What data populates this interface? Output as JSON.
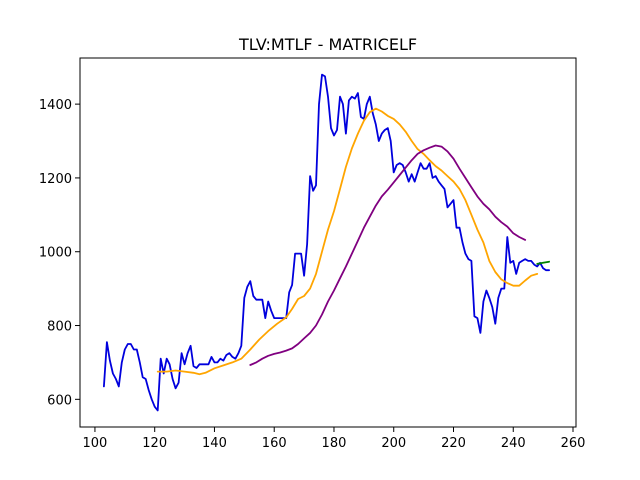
{
  "chart_data": {
    "type": "line",
    "title": "TLV:MTLF - MATRICELF",
    "xlabel": "",
    "ylabel": "",
    "xlim": [
      95,
      261
    ],
    "ylim": [
      525,
      1525
    ],
    "xticks": [
      100,
      120,
      140,
      160,
      180,
      200,
      220,
      240,
      260
    ],
    "yticks": [
      600,
      800,
      1000,
      1200,
      1400
    ],
    "grid": false,
    "legend": "none",
    "series": [
      {
        "color": "#0000dd",
        "points": [
          [
            103,
            635
          ],
          [
            104,
            755
          ],
          [
            105,
            705
          ],
          [
            106,
            670
          ],
          [
            107,
            655
          ],
          [
            108,
            635
          ],
          [
            109,
            700
          ],
          [
            110,
            735
          ],
          [
            111,
            750
          ],
          [
            112,
            750
          ],
          [
            113,
            735
          ],
          [
            114,
            735
          ],
          [
            115,
            700
          ],
          [
            116,
            660
          ],
          [
            117,
            655
          ],
          [
            118,
            625
          ],
          [
            119,
            600
          ],
          [
            120,
            580
          ],
          [
            121,
            570
          ],
          [
            122,
            710
          ],
          [
            123,
            670
          ],
          [
            124,
            710
          ],
          [
            125,
            695
          ],
          [
            126,
            655
          ],
          [
            127,
            630
          ],
          [
            128,
            645
          ],
          [
            129,
            725
          ],
          [
            130,
            695
          ],
          [
            131,
            725
          ],
          [
            132,
            745
          ],
          [
            133,
            690
          ],
          [
            134,
            685
          ],
          [
            135,
            695
          ],
          [
            136,
            695
          ],
          [
            137,
            695
          ],
          [
            138,
            695
          ],
          [
            139,
            715
          ],
          [
            140,
            700
          ],
          [
            141,
            700
          ],
          [
            142,
            710
          ],
          [
            143,
            705
          ],
          [
            144,
            720
          ],
          [
            145,
            725
          ],
          [
            146,
            715
          ],
          [
            147,
            710
          ],
          [
            148,
            725
          ],
          [
            149,
            745
          ],
          [
            150,
            875
          ],
          [
            151,
            905
          ],
          [
            152,
            920
          ],
          [
            153,
            880
          ],
          [
            154,
            870
          ],
          [
            155,
            870
          ],
          [
            156,
            870
          ],
          [
            157,
            820
          ],
          [
            158,
            865
          ],
          [
            159,
            840
          ],
          [
            160,
            820
          ],
          [
            161,
            820
          ],
          [
            162,
            820
          ],
          [
            163,
            820
          ],
          [
            164,
            820
          ],
          [
            165,
            890
          ],
          [
            166,
            910
          ],
          [
            167,
            995
          ],
          [
            168,
            995
          ],
          [
            169,
            995
          ],
          [
            170,
            935
          ],
          [
            171,
            1020
          ],
          [
            172,
            1205
          ],
          [
            173,
            1165
          ],
          [
            174,
            1180
          ],
          [
            175,
            1400
          ],
          [
            176,
            1480
          ],
          [
            177,
            1475
          ],
          [
            178,
            1420
          ],
          [
            179,
            1335
          ],
          [
            180,
            1315
          ],
          [
            181,
            1330
          ],
          [
            182,
            1420
          ],
          [
            183,
            1400
          ],
          [
            184,
            1320
          ],
          [
            185,
            1410
          ],
          [
            186,
            1420
          ],
          [
            187,
            1415
          ],
          [
            188,
            1430
          ],
          [
            189,
            1365
          ],
          [
            190,
            1360
          ],
          [
            191,
            1400
          ],
          [
            192,
            1420
          ],
          [
            193,
            1375
          ],
          [
            194,
            1345
          ],
          [
            195,
            1300
          ],
          [
            196,
            1320
          ],
          [
            197,
            1330
          ],
          [
            198,
            1335
          ],
          [
            199,
            1300
          ],
          [
            200,
            1215
          ],
          [
            201,
            1235
          ],
          [
            202,
            1240
          ],
          [
            203,
            1235
          ],
          [
            204,
            1215
          ],
          [
            205,
            1190
          ],
          [
            206,
            1210
          ],
          [
            207,
            1190
          ],
          [
            208,
            1215
          ],
          [
            209,
            1240
          ],
          [
            210,
            1225
          ],
          [
            211,
            1225
          ],
          [
            212,
            1240
          ],
          [
            213,
            1200
          ],
          [
            214,
            1205
          ],
          [
            215,
            1190
          ],
          [
            216,
            1180
          ],
          [
            217,
            1170
          ],
          [
            218,
            1120
          ],
          [
            219,
            1130
          ],
          [
            220,
            1140
          ],
          [
            221,
            1065
          ],
          [
            222,
            1065
          ],
          [
            223,
            1025
          ],
          [
            224,
            995
          ],
          [
            225,
            980
          ],
          [
            226,
            975
          ],
          [
            227,
            825
          ],
          [
            228,
            820
          ],
          [
            229,
            780
          ],
          [
            230,
            865
          ],
          [
            231,
            895
          ],
          [
            232,
            875
          ],
          [
            233,
            850
          ],
          [
            234,
            805
          ],
          [
            235,
            875
          ],
          [
            236,
            900
          ],
          [
            237,
            900
          ],
          [
            238,
            1040
          ],
          [
            239,
            970
          ],
          [
            240,
            975
          ],
          [
            241,
            940
          ],
          [
            242,
            970
          ],
          [
            243,
            975
          ],
          [
            244,
            980
          ],
          [
            245,
            975
          ],
          [
            246,
            975
          ],
          [
            247,
            965
          ],
          [
            248,
            960
          ],
          [
            249,
            970
          ],
          [
            250,
            955
          ],
          [
            251,
            950
          ],
          [
            252,
            950
          ]
        ]
      },
      {
        "color": "#ffa500",
        "points": [
          [
            121,
            675
          ],
          [
            124,
            675
          ],
          [
            127,
            678
          ],
          [
            130,
            675
          ],
          [
            133,
            672
          ],
          [
            135,
            668
          ],
          [
            137,
            672
          ],
          [
            140,
            684
          ],
          [
            143,
            692
          ],
          [
            146,
            700
          ],
          [
            149,
            710
          ],
          [
            152,
            735
          ],
          [
            155,
            762
          ],
          [
            158,
            785
          ],
          [
            161,
            805
          ],
          [
            164,
            822
          ],
          [
            166,
            845
          ],
          [
            168,
            872
          ],
          [
            170,
            880
          ],
          [
            172,
            900
          ],
          [
            174,
            940
          ],
          [
            176,
            1000
          ],
          [
            178,
            1060
          ],
          [
            180,
            1110
          ],
          [
            182,
            1170
          ],
          [
            184,
            1230
          ],
          [
            186,
            1280
          ],
          [
            188,
            1320
          ],
          [
            190,
            1355
          ],
          [
            192,
            1378
          ],
          [
            194,
            1388
          ],
          [
            196,
            1380
          ],
          [
            198,
            1368
          ],
          [
            200,
            1360
          ],
          [
            202,
            1345
          ],
          [
            204,
            1325
          ],
          [
            206,
            1300
          ],
          [
            208,
            1278
          ],
          [
            210,
            1265
          ],
          [
            212,
            1248
          ],
          [
            214,
            1232
          ],
          [
            216,
            1220
          ],
          [
            218,
            1205
          ],
          [
            220,
            1190
          ],
          [
            222,
            1170
          ],
          [
            224,
            1140
          ],
          [
            226,
            1100
          ],
          [
            228,
            1060
          ],
          [
            230,
            1025
          ],
          [
            232,
            975
          ],
          [
            234,
            945
          ],
          [
            236,
            925
          ],
          [
            238,
            915
          ],
          [
            240,
            908
          ],
          [
            242,
            908
          ],
          [
            244,
            922
          ],
          [
            246,
            935
          ],
          [
            248,
            940
          ]
        ]
      },
      {
        "color": "#800080",
        "points": [
          [
            152,
            693
          ],
          [
            154,
            700
          ],
          [
            156,
            710
          ],
          [
            158,
            718
          ],
          [
            160,
            723
          ],
          [
            162,
            727
          ],
          [
            164,
            732
          ],
          [
            166,
            738
          ],
          [
            168,
            750
          ],
          [
            170,
            765
          ],
          [
            172,
            780
          ],
          [
            174,
            800
          ],
          [
            176,
            830
          ],
          [
            178,
            865
          ],
          [
            180,
            895
          ],
          [
            182,
            928
          ],
          [
            184,
            960
          ],
          [
            186,
            995
          ],
          [
            188,
            1030
          ],
          [
            190,
            1065
          ],
          [
            192,
            1095
          ],
          [
            194,
            1125
          ],
          [
            196,
            1150
          ],
          [
            198,
            1168
          ],
          [
            200,
            1188
          ],
          [
            202,
            1208
          ],
          [
            204,
            1228
          ],
          [
            206,
            1248
          ],
          [
            208,
            1265
          ],
          [
            210,
            1275
          ],
          [
            212,
            1282
          ],
          [
            214,
            1288
          ],
          [
            216,
            1285
          ],
          [
            218,
            1272
          ],
          [
            220,
            1252
          ],
          [
            222,
            1225
          ],
          [
            224,
            1200
          ],
          [
            226,
            1175
          ],
          [
            228,
            1150
          ],
          [
            230,
            1130
          ],
          [
            232,
            1115
          ],
          [
            234,
            1095
          ],
          [
            236,
            1080
          ],
          [
            238,
            1068
          ],
          [
            240,
            1050
          ],
          [
            242,
            1040
          ],
          [
            244,
            1032
          ]
        ]
      },
      {
        "color": "#008000",
        "points": [
          [
            248,
            967
          ],
          [
            250,
            970
          ],
          [
            252,
            973
          ]
        ]
      }
    ]
  }
}
